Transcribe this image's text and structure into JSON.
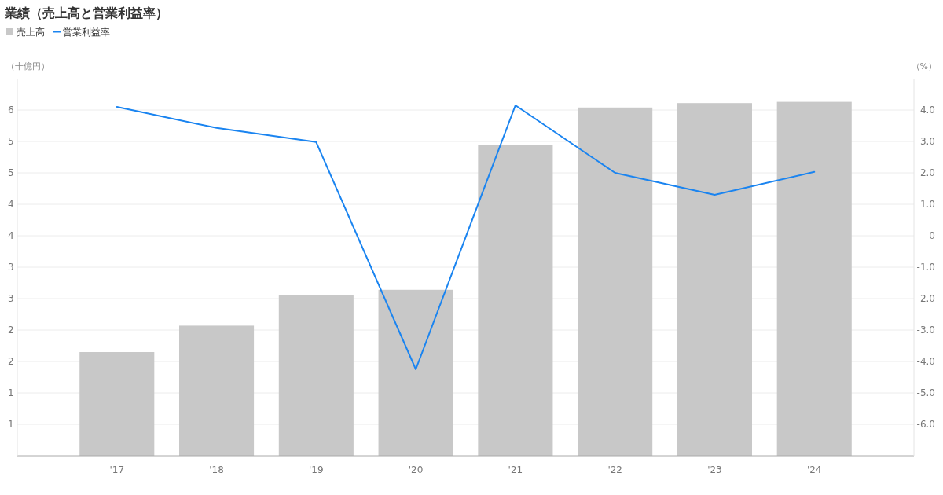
{
  "chart_data": {
    "type": "bar",
    "title": "業績（売上高と営業利益率）",
    "ylabel": "（十億円）",
    "y2label": "（%）",
    "categories": [
      "'17",
      "'18",
      "'19",
      "'20",
      "'21",
      "'22",
      "'23",
      "'24"
    ],
    "series": [
      {
        "name": "売上高",
        "color": "#c8c8c8",
        "values": [
          1.65,
          2.07,
          2.55,
          2.64,
          4.95,
          5.54,
          5.61,
          5.63
        ]
      },
      {
        "name": "営業利益率",
        "type": "line",
        "axis": "y2",
        "color": "#1a84f0",
        "values": [
          4.1,
          3.43,
          2.98,
          -4.25,
          4.15,
          2.0,
          1.3,
          2.03
        ]
      }
    ],
    "ylim": [
      0,
      6
    ],
    "yticks": [
      {
        "value": 0.5,
        "label": "1"
      },
      {
        "value": 1,
        "label": "1"
      },
      {
        "value": 1.5,
        "label": "2"
      },
      {
        "value": 2,
        "label": "2"
      },
      {
        "value": 2.5,
        "label": "3"
      },
      {
        "value": 3,
        "label": "3"
      },
      {
        "value": 3.5,
        "label": "4"
      },
      {
        "value": 4,
        "label": "4"
      },
      {
        "value": 4.5,
        "label": "5"
      },
      {
        "value": 5,
        "label": "5"
      },
      {
        "value": 5.5,
        "label": "6"
      }
    ],
    "y2lim": [
      -7,
      5
    ],
    "y2ticks": [
      {
        "value": 4,
        "label": "4.0"
      },
      {
        "value": 3,
        "label": "3.0"
      },
      {
        "value": 2,
        "label": "2.0"
      },
      {
        "value": 1,
        "label": "1.0"
      },
      0,
      {
        "value": -1,
        "label": "-1.0"
      },
      {
        "value": -2,
        "label": "-2.0"
      },
      {
        "value": -3,
        "label": "-3.0"
      },
      {
        "value": -4,
        "label": "-4.0"
      },
      {
        "value": -5,
        "label": "-5.0"
      },
      {
        "value": -6,
        "label": "-6.0"
      }
    ],
    "grid": "y",
    "legend": "top left",
    "marker": "none"
  }
}
